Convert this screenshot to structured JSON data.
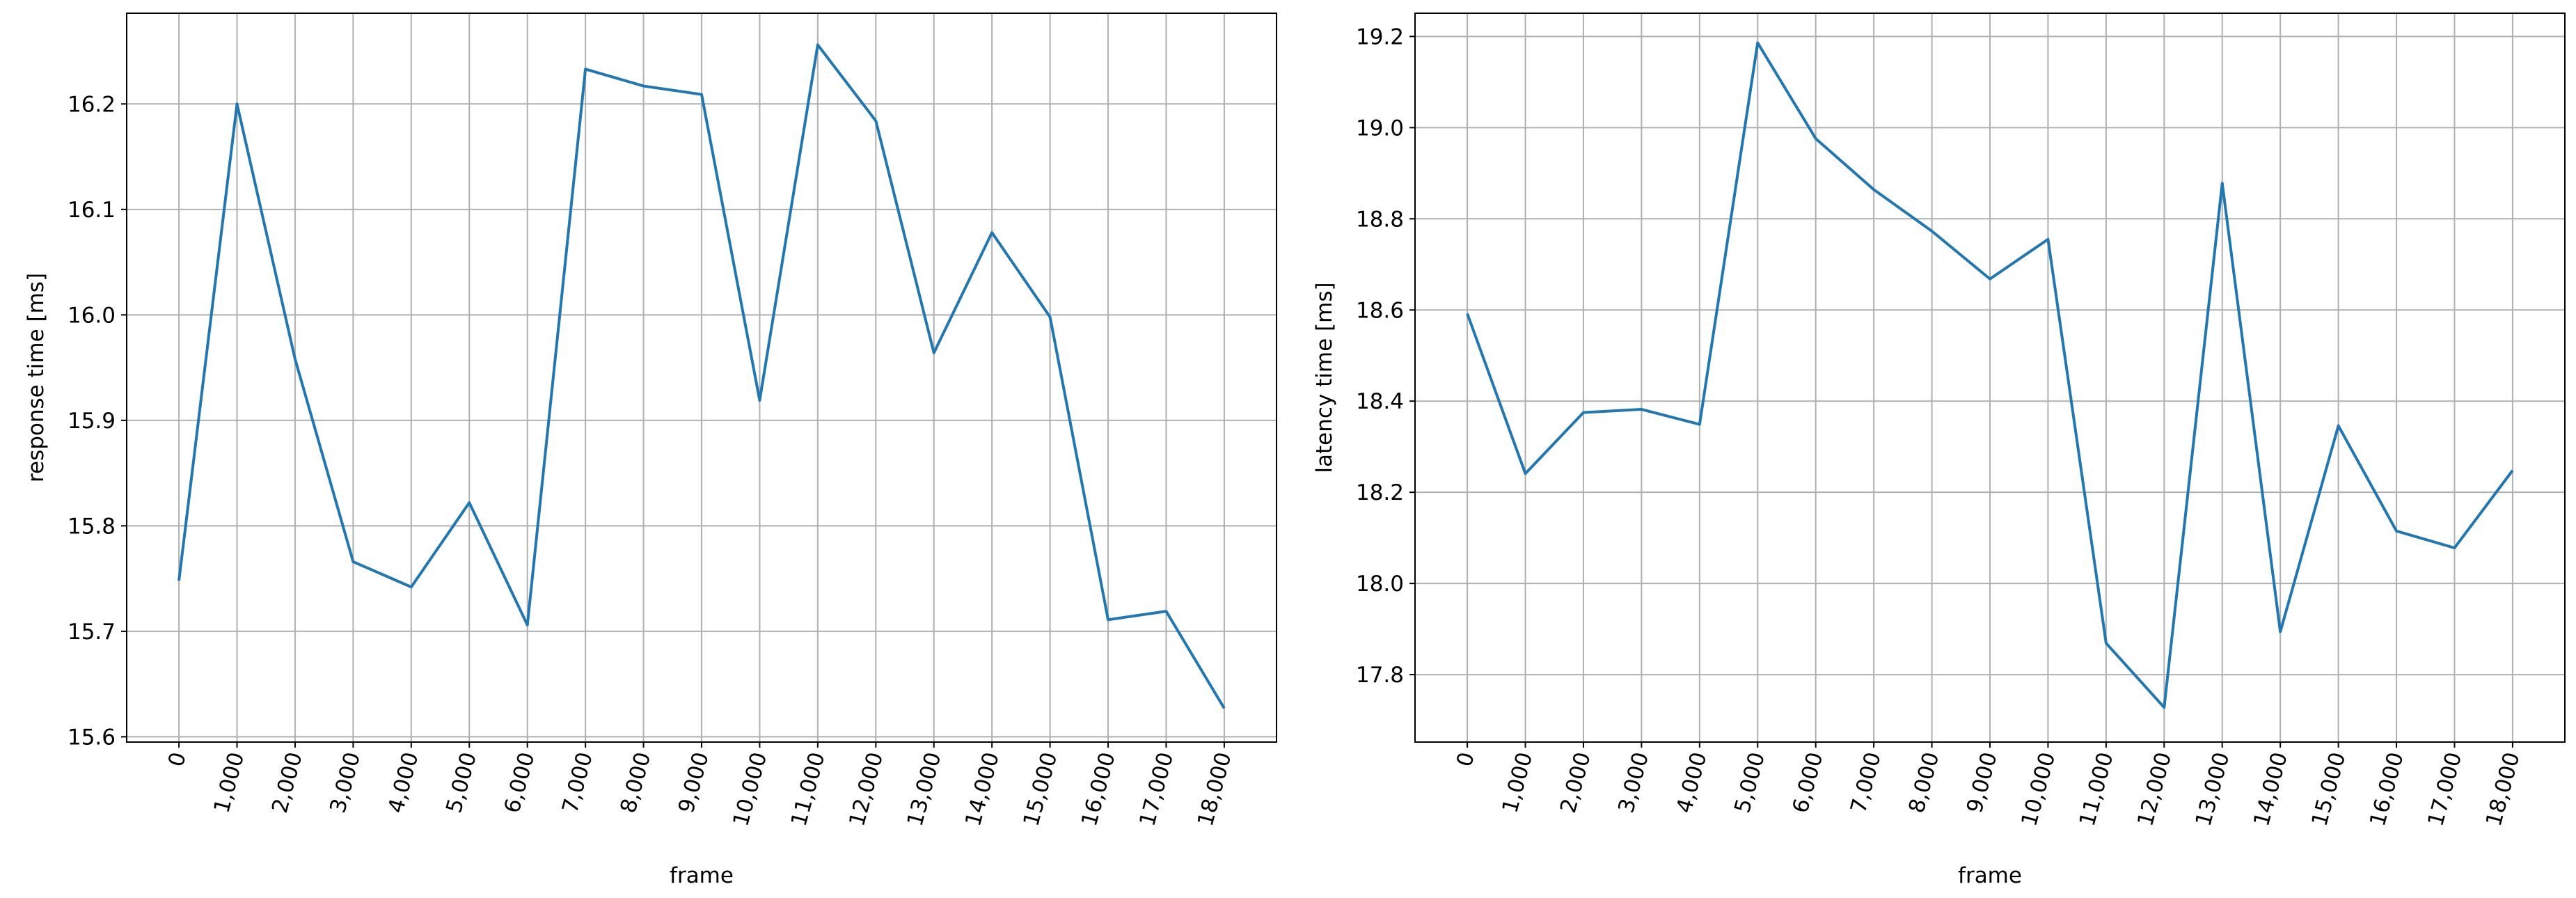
{
  "chart_data": [
    {
      "type": "line",
      "xlabel": "frame",
      "ylabel": "response time [ms]",
      "color": "#1f77b4",
      "grid": true,
      "x": [
        0,
        1000,
        2000,
        3000,
        4000,
        5000,
        6000,
        7000,
        8000,
        9000,
        10000,
        11000,
        12000,
        13000,
        14000,
        15000,
        16000,
        17000,
        18000
      ],
      "values": [
        15.748,
        16.2,
        15.958,
        15.766,
        15.742,
        15.822,
        15.706,
        16.233,
        16.217,
        16.209,
        15.919,
        16.256,
        16.184,
        15.964,
        16.078,
        15.998,
        15.711,
        15.719,
        15.627
      ],
      "xlim": [
        -900,
        18900
      ],
      "ylim": [
        15.595,
        16.286
      ],
      "xticks": [
        0,
        {
          "value": 1000,
          "label": "1,000"
        },
        {
          "value": 2000,
          "label": "2,000"
        },
        {
          "value": 3000,
          "label": "3,000"
        },
        {
          "value": 4000,
          "label": "4,000"
        },
        {
          "value": 5000,
          "label": "5,000"
        },
        {
          "value": 6000,
          "label": "6,000"
        },
        {
          "value": 7000,
          "label": "7,000"
        },
        {
          "value": 8000,
          "label": "8,000"
        },
        {
          "value": 9000,
          "label": "9,000"
        },
        {
          "value": 10000,
          "label": "10,000"
        },
        {
          "value": 11000,
          "label": "11,000"
        },
        {
          "value": 12000,
          "label": "12,000"
        },
        {
          "value": 13000,
          "label": "13,000"
        },
        {
          "value": 14000,
          "label": "14,000"
        },
        {
          "value": 15000,
          "label": "15,000"
        },
        {
          "value": 16000,
          "label": "16,000"
        },
        {
          "value": 17000,
          "label": "17,000"
        },
        {
          "value": 18000,
          "label": "18,000"
        }
      ],
      "yticks": [
        15.6,
        15.7,
        15.8,
        15.9,
        {
          "value": 16,
          "label": "16.0"
        },
        16.1,
        16.2
      ]
    },
    {
      "type": "line",
      "xlabel": "frame",
      "ylabel": "latency time [ms]",
      "color": "#1f77b4",
      "grid": true,
      "x": [
        0,
        1000,
        2000,
        3000,
        4000,
        5000,
        6000,
        7000,
        8000,
        9000,
        10000,
        11000,
        12000,
        13000,
        14000,
        15000,
        16000,
        17000,
        18000
      ],
      "values": [
        18.592,
        18.241,
        18.375,
        18.382,
        18.349,
        19.186,
        18.976,
        18.864,
        18.773,
        18.668,
        18.755,
        17.869,
        17.728,
        18.878,
        17.894,
        18.346,
        18.115,
        18.078,
        18.248
      ],
      "xlim": [
        -900,
        18900
      ],
      "ylim": [
        17.652,
        19.251
      ],
      "xticks": [
        0,
        {
          "value": 1000,
          "label": "1,000"
        },
        {
          "value": 2000,
          "label": "2,000"
        },
        {
          "value": 3000,
          "label": "3,000"
        },
        {
          "value": 4000,
          "label": "4,000"
        },
        {
          "value": 5000,
          "label": "5,000"
        },
        {
          "value": 6000,
          "label": "6,000"
        },
        {
          "value": 7000,
          "label": "7,000"
        },
        {
          "value": 8000,
          "label": "8,000"
        },
        {
          "value": 9000,
          "label": "9,000"
        },
        {
          "value": 10000,
          "label": "10,000"
        },
        {
          "value": 11000,
          "label": "11,000"
        },
        {
          "value": 12000,
          "label": "12,000"
        },
        {
          "value": 13000,
          "label": "13,000"
        },
        {
          "value": 14000,
          "label": "14,000"
        },
        {
          "value": 15000,
          "label": "15,000"
        },
        {
          "value": 16000,
          "label": "16,000"
        },
        {
          "value": 17000,
          "label": "17,000"
        },
        {
          "value": 18000,
          "label": "18,000"
        }
      ],
      "yticks": [
        17.8,
        {
          "value": 18,
          "label": "18.0"
        },
        18.2,
        18.4,
        18.6,
        18.8,
        {
          "value": 19,
          "label": "19.0"
        },
        19.2
      ]
    }
  ]
}
